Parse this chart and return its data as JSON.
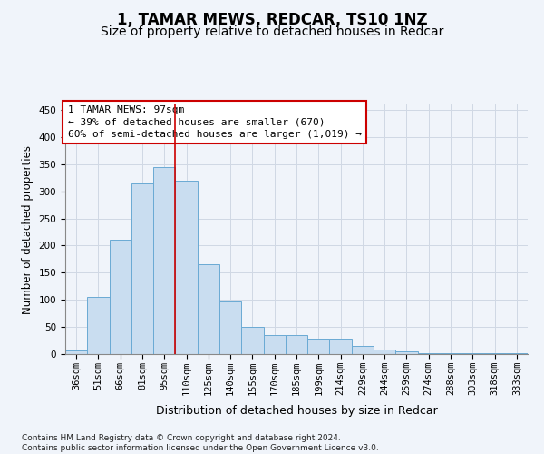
{
  "title1": "1, TAMAR MEWS, REDCAR, TS10 1NZ",
  "title2": "Size of property relative to detached houses in Redcar",
  "xlabel": "Distribution of detached houses by size in Redcar",
  "ylabel": "Number of detached properties",
  "categories": [
    "36sqm",
    "51sqm",
    "66sqm",
    "81sqm",
    "95sqm",
    "110sqm",
    "125sqm",
    "140sqm",
    "155sqm",
    "170sqm",
    "185sqm",
    "199sqm",
    "214sqm",
    "229sqm",
    "244sqm",
    "259sqm",
    "274sqm",
    "288sqm",
    "303sqm",
    "318sqm",
    "333sqm"
  ],
  "values": [
    7,
    106,
    210,
    315,
    345,
    319,
    165,
    97,
    50,
    35,
    35,
    29,
    29,
    15,
    8,
    5,
    2,
    1,
    1,
    1,
    1
  ],
  "bar_color": "#c9ddf0",
  "bar_edge_color": "#6aaad4",
  "grid_color": "#d0d8e4",
  "annotation_text": "1 TAMAR MEWS: 97sqm\n← 39% of detached houses are smaller (670)\n60% of semi-detached houses are larger (1,019) →",
  "annotation_box_color": "#ffffff",
  "annotation_box_edge": "#cc0000",
  "vline_x": 4.5,
  "vline_color": "#cc0000",
  "ylim": [
    0,
    460
  ],
  "yticks": [
    0,
    50,
    100,
    150,
    200,
    250,
    300,
    350,
    400,
    450
  ],
  "footnote": "Contains HM Land Registry data © Crown copyright and database right 2024.\nContains public sector information licensed under the Open Government Licence v3.0.",
  "title1_fontsize": 12,
  "title2_fontsize": 10,
  "tick_fontsize": 7.5,
  "ylabel_fontsize": 8.5,
  "xlabel_fontsize": 9,
  "annotation_fontsize": 8,
  "footnote_fontsize": 6.5,
  "bg_color": "#f0f4fa"
}
